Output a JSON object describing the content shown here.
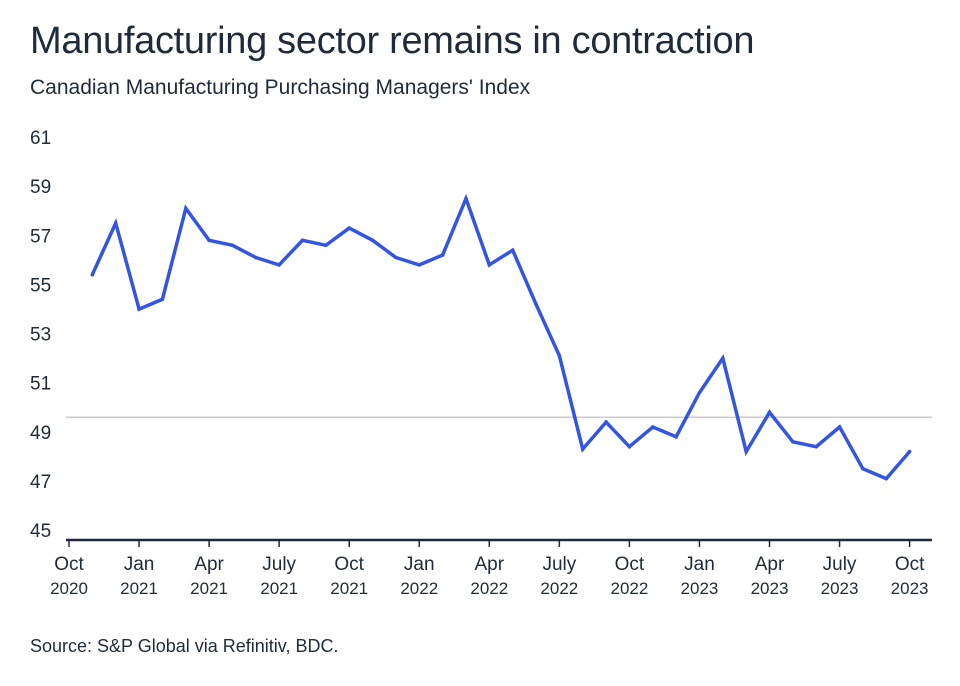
{
  "title": "Manufacturing sector remains in contraction",
  "subtitle": "Canadian Manufacturing Purchasing Managers' Index",
  "source": "Source: S&P Global via Refinitiv, BDC.",
  "colors": {
    "line": "#3355e0",
    "reference_line": "#cccccc",
    "axis": "#1f2b3a"
  },
  "chart_data": {
    "type": "line",
    "title": "Manufacturing sector remains in contraction",
    "subtitle": "Canadian Manufacturing Purchasing Managers' Index",
    "ylim": [
      45,
      61
    ],
    "y_ticks": [
      45,
      47,
      49,
      51,
      53,
      55,
      57,
      59,
      61
    ],
    "reference_line": 50,
    "x_tick_labels": [
      {
        "month": "Oct",
        "year": "2020"
      },
      {
        "month": "Jan",
        "year": "2021"
      },
      {
        "month": "Apr",
        "year": "2021"
      },
      {
        "month": "July",
        "year": "2021"
      },
      {
        "month": "Oct",
        "year": "2021"
      },
      {
        "month": "Jan",
        "year": "2022"
      },
      {
        "month": "Apr",
        "year": "2022"
      },
      {
        "month": "July",
        "year": "2022"
      },
      {
        "month": "Oct",
        "year": "2022"
      },
      {
        "month": "Jan",
        "year": "2023"
      },
      {
        "month": "Apr",
        "year": "2023"
      },
      {
        "month": "July",
        "year": "2023"
      },
      {
        "month": "Oct",
        "year": "2023"
      }
    ],
    "x": [
      "2020-11",
      "2020-12",
      "2021-01",
      "2021-02",
      "2021-03",
      "2021-04",
      "2021-05",
      "2021-06",
      "2021-07",
      "2021-08",
      "2021-09",
      "2021-10",
      "2021-11",
      "2021-12",
      "2022-01",
      "2022-02",
      "2022-03",
      "2022-04",
      "2022-05",
      "2022-06",
      "2022-07",
      "2022-08",
      "2022-09",
      "2022-10",
      "2022-11",
      "2022-12",
      "2023-01",
      "2023-02",
      "2023-03",
      "2023-04",
      "2023-05",
      "2023-06",
      "2023-07",
      "2023-08",
      "2023-09",
      "2023-10"
    ],
    "values": [
      55.8,
      57.9,
      54.4,
      54.8,
      58.5,
      57.2,
      57.0,
      56.5,
      56.2,
      57.2,
      57.0,
      57.7,
      57.2,
      56.5,
      56.2,
      56.6,
      58.9,
      56.2,
      56.8,
      54.6,
      52.5,
      48.7,
      49.8,
      48.8,
      49.6,
      49.2,
      51.0,
      52.4,
      48.6,
      50.2,
      49.0,
      48.8,
      49.6,
      47.9,
      47.5,
      48.6
    ]
  }
}
